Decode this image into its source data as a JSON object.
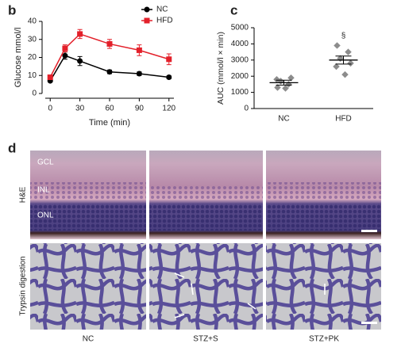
{
  "chart_data": [
    {
      "type": "line",
      "panel_label": "b",
      "ylabel": "Glucose mmol/l",
      "xlabel": "Time (min)",
      "x": [
        0,
        15,
        30,
        60,
        90,
        120
      ],
      "series": [
        {
          "name": "NC",
          "color": "#000000",
          "marker": "circle",
          "values": [
            7,
            21,
            18,
            12,
            11,
            9
          ],
          "errors": [
            0.5,
            2,
            2.5,
            1,
            1,
            0.8
          ]
        },
        {
          "name": "HFD",
          "color": "#e3202a",
          "marker": "square",
          "values": [
            9,
            25,
            33,
            27.5,
            24,
            19
          ],
          "errors": [
            0.8,
            2,
            2.5,
            2.5,
            3,
            3
          ]
        }
      ],
      "xlim": [
        -5,
        125
      ],
      "xticks": [
        0,
        30,
        60,
        90,
        120
      ],
      "ylim": [
        0,
        40
      ],
      "yticks": [
        0,
        10,
        20,
        30,
        40
      ],
      "legend": "top-right"
    },
    {
      "type": "dotplot",
      "panel_label": "c",
      "ylabel": "AUC (mmol/l × min)",
      "categories": [
        "NC",
        "HFD"
      ],
      "color": "#8c8c8c",
      "points": [
        [
          1300,
          1500,
          1700,
          1900,
          1800,
          1250
        ],
        [
          3900,
          3500,
          3100,
          2800,
          2600,
          2100
        ]
      ],
      "means": [
        1600,
        3000
      ],
      "errors": [
        150,
        250
      ],
      "annotation": "§",
      "ylim": [
        0,
        5000
      ],
      "yticks": [
        0,
        1000,
        2000,
        3000,
        4000,
        5000
      ]
    }
  ],
  "panel_d": {
    "label": "d",
    "row_labels": [
      "H&E",
      "Trypsin digestion"
    ],
    "layer_labels": [
      "GCL",
      "INL",
      "ONL"
    ],
    "column_labels": [
      "NC",
      "STZ+S",
      "STZ+PK"
    ]
  }
}
